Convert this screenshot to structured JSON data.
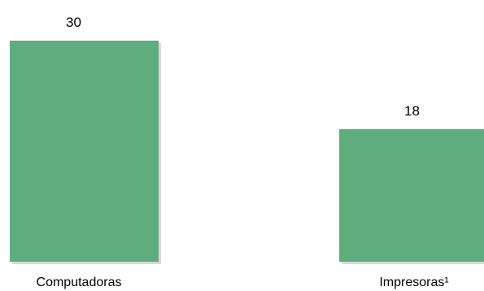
{
  "chart_data": {
    "type": "bar",
    "categories": [
      "Computadoras",
      "Impresoras¹"
    ],
    "values": [
      30,
      18
    ],
    "data_labels": [
      "30",
      "18"
    ],
    "title": "",
    "xlabel": "",
    "ylabel": "",
    "ylim": [
      0,
      30
    ],
    "grid": false,
    "legend": "none",
    "bar_color": "#5fac7f",
    "shadow_color": "#b9b9b9"
  }
}
